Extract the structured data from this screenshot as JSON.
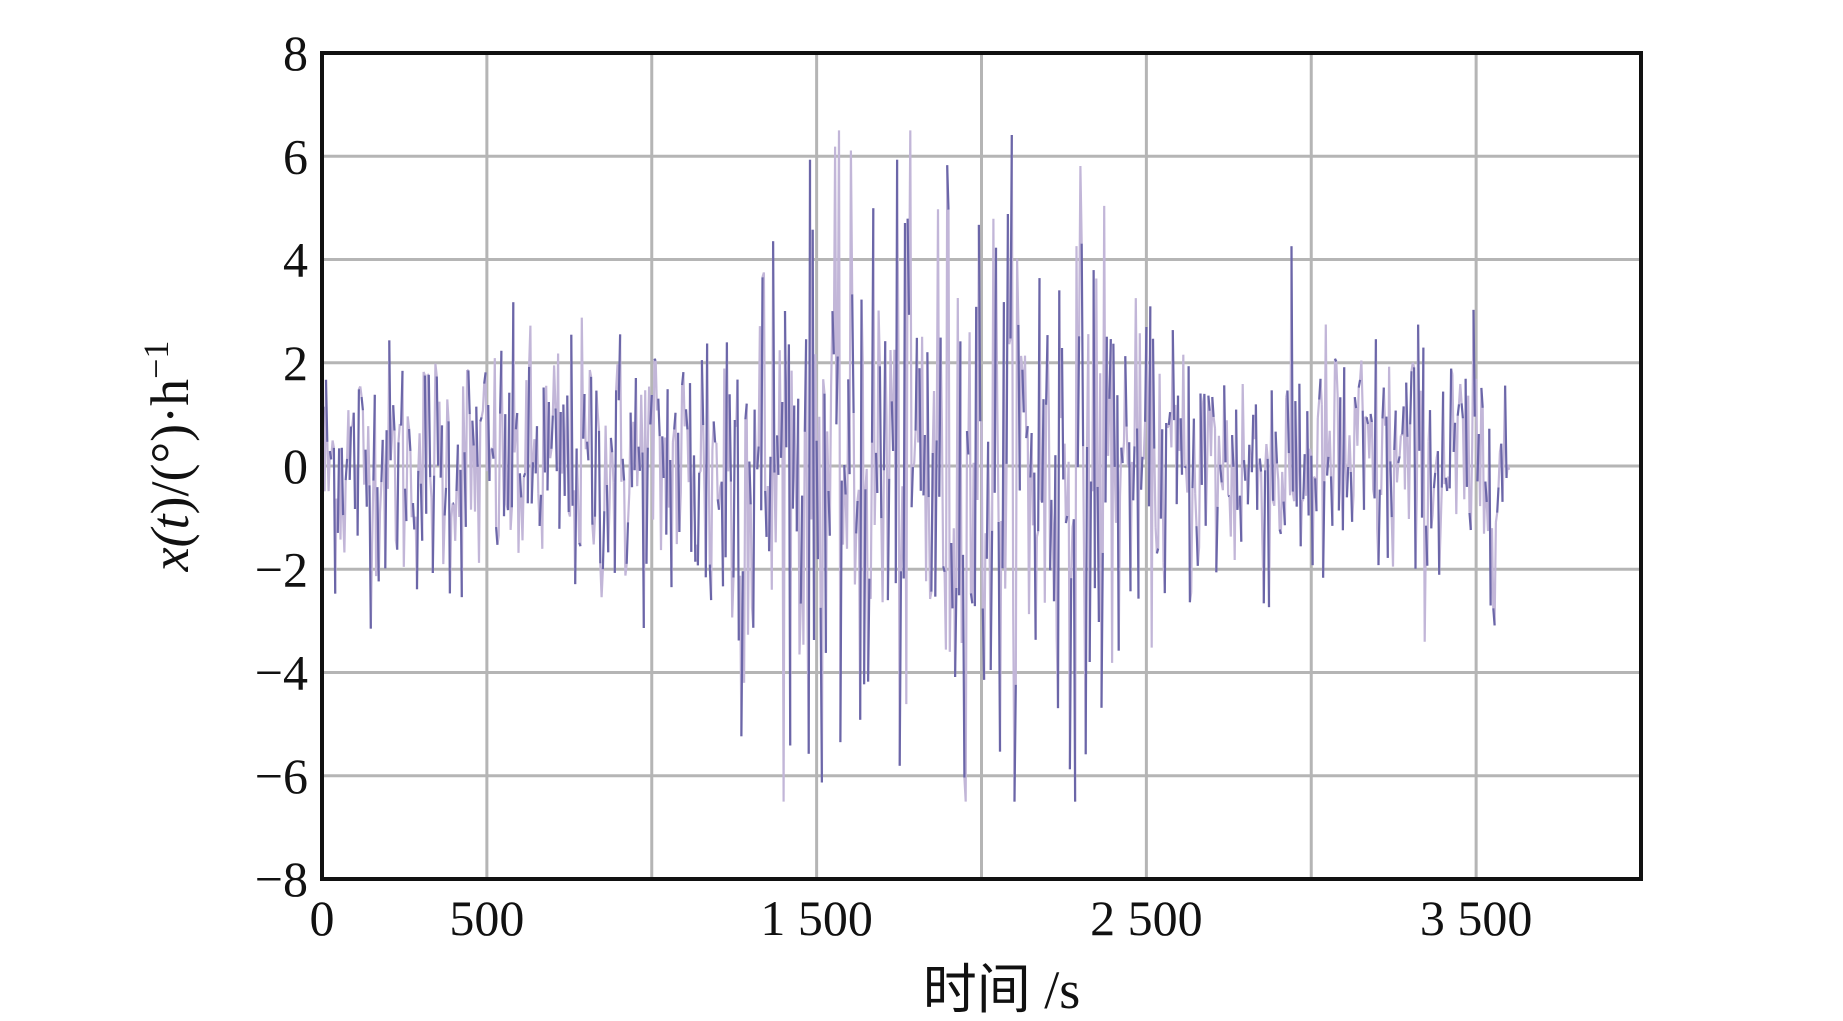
{
  "chart_data": {
    "type": "line",
    "title": "",
    "xlabel": "时间 /s",
    "ylabel": {
      "base": "x(",
      "italic_t": "t",
      "rest": ")/(°)·h",
      "sup": "−1"
    },
    "xlim": [
      0,
      4000
    ],
    "ylim": [
      -8,
      8
    ],
    "x_ticks": [
      0,
      500,
      1000,
      1500,
      2000,
      2500,
      3000,
      3500,
      4000
    ],
    "x_tick_labels": [
      {
        "value": 0,
        "label": "0"
      },
      {
        "value": 500,
        "label": "500"
      },
      {
        "value": 1500,
        "label": "1 500"
      },
      {
        "value": 2500,
        "label": "2 500"
      },
      {
        "value": 3500,
        "label": "3 500"
      }
    ],
    "y_tick_labels": [
      {
        "value": 8,
        "label": "8"
      },
      {
        "value": 6,
        "label": "6"
      },
      {
        "value": 4,
        "label": "4"
      },
      {
        "value": 2,
        "label": "2"
      },
      {
        "value": 0,
        "label": "0"
      },
      {
        "value": -2,
        "label": "−2"
      },
      {
        "value": -4,
        "label": "−4"
      },
      {
        "value": -6,
        "label": "−6"
      },
      {
        "value": -8,
        "label": "−8"
      }
    ],
    "grid": true,
    "legend": "none",
    "colors": {
      "dark_series": "#6b66a8",
      "light_series": "#c2b6d8",
      "grid": "#b5b5b5",
      "axis": "#111111"
    },
    "series": [
      {
        "style": "noise-envelope",
        "x_range": [
          0,
          3600
        ],
        "x_step": 4,
        "envelope_x": [
          0,
          300,
          700,
          1100,
          1200,
          1400,
          1600,
          1800,
          2000,
          2200,
          2400,
          2450,
          2700,
          3000,
          3300,
          3600
        ],
        "envelope_y_std": [
          1.2,
          1.2,
          1.3,
          1.4,
          2.3,
          2.6,
          2.7,
          2.9,
          2.8,
          2.7,
          2.6,
          1.4,
          1.3,
          1.3,
          1.3,
          1.2
        ],
        "peak_max": 6.5,
        "peak_min": -6.5
      }
    ]
  }
}
